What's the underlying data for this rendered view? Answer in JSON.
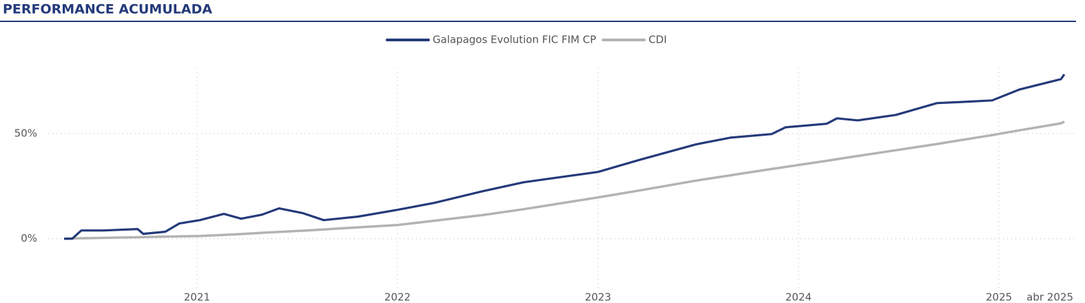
{
  "chart_data": {
    "type": "line",
    "title": "PERFORMANCE ACUMULADA",
    "x": [
      2020.337,
      2020.378,
      2020.423,
      2020.533,
      2020.704,
      2020.732,
      2020.842,
      2020.911,
      2021.014,
      2021.134,
      2021.22,
      2021.323,
      2021.409,
      2021.529,
      2021.632,
      2021.804,
      2022.0,
      2022.182,
      2022.423,
      2022.629,
      2022.801,
      2023.0,
      2023.213,
      2023.488,
      2023.66,
      2023.866,
      2023.935,
      2024.141,
      2024.192,
      2024.296,
      2024.485,
      2024.691,
      2024.828,
      2024.966,
      2025.103,
      2025.309,
      2025.326
    ],
    "series": [
      {
        "name": "Galapagos Evolution FIC FIM CP",
        "color": "#243a7a",
        "values": [
          0,
          0,
          3.9,
          3.9,
          4.6,
          2.3,
          3.3,
          7.2,
          8.8,
          11.8,
          9.5,
          11.4,
          14.4,
          12.1,
          8.8,
          10.5,
          13.7,
          17,
          22.5,
          26.8,
          29.1,
          31.7,
          37.6,
          44.8,
          48,
          49.7,
          52.9,
          54.6,
          57.2,
          56.2,
          58.8,
          64.4,
          65,
          65.7,
          70.9,
          75.8,
          78.1
        ]
      },
      {
        "name": "CDI",
        "color": "#b3b3b3",
        "values": [
          0,
          0.1,
          0.2,
          0.4,
          0.7,
          0.8,
          1.0,
          1.1,
          1.3,
          1.8,
          2.2,
          2.8,
          3.2,
          3.8,
          4.4,
          5.4,
          6.5,
          8.5,
          11.2,
          14,
          16.6,
          19.6,
          23,
          27.6,
          30.1,
          33.1,
          34.1,
          37,
          37.8,
          39.3,
          42,
          45,
          47.1,
          49.2,
          51.5,
          54.8,
          55.6
        ]
      }
    ],
    "xlim": [
      2020.337,
      2025.326
    ],
    "xticks": [
      2021,
      2022,
      2023,
      2024,
      2025,
      {
        "value": 2025.326,
        "label": "abr 2025"
      }
    ],
    "ylim": [
      -24,
      81
    ],
    "yticks": [
      {
        "value": 0,
        "label": "0%"
      },
      {
        "value": 50,
        "label": "50%"
      }
    ],
    "grid": true
  }
}
